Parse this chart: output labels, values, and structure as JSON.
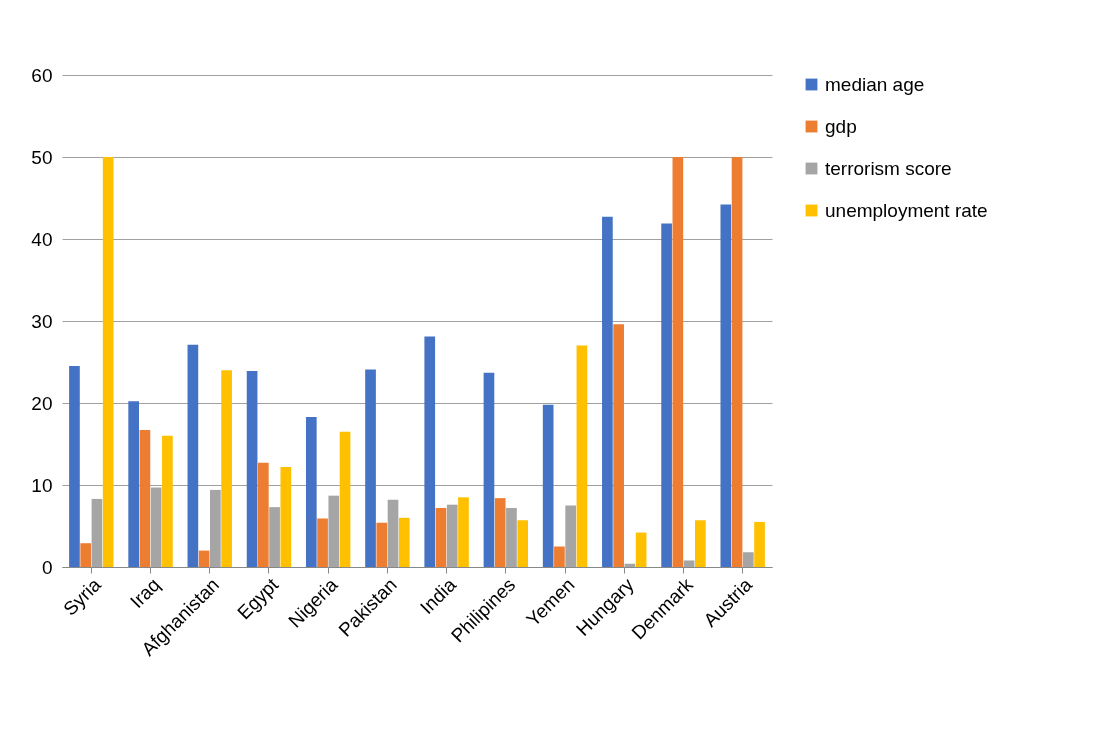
{
  "chart_data": {
    "type": "bar",
    "categories": [
      "Syria",
      "Iraq",
      "Afghanistan",
      "Egypt",
      "Nigeria",
      "Pakistan",
      "India",
      "Philipines",
      "Yemen",
      "Hungary",
      "Denmark",
      "Austria"
    ],
    "series": [
      {
        "name": "median age",
        "color": "#4472c4",
        "values": [
          24.5,
          20.2,
          27.1,
          23.9,
          18.3,
          24.1,
          28.1,
          23.7,
          19.8,
          42.7,
          41.9,
          44.2
        ]
      },
      {
        "name": "gdp",
        "color": "#ed7d31",
        "values": [
          2.9,
          16.7,
          2.0,
          12.7,
          5.9,
          5.4,
          7.2,
          8.4,
          2.5,
          29.6,
          50,
          50
        ]
      },
      {
        "name": "terrorism score",
        "color": "#a5a5a5",
        "values": [
          8.3,
          9.7,
          9.4,
          7.3,
          8.7,
          8.2,
          7.6,
          7.2,
          7.5,
          0.4,
          0.8,
          1.8
        ]
      },
      {
        "name": "unemployment rate",
        "color": "#ffc000",
        "values": [
          50,
          16,
          24,
          12.2,
          16.5,
          6.0,
          8.5,
          5.7,
          27.0,
          4.2,
          5.7,
          5.5
        ]
      }
    ],
    "ylim": [
      0,
      60
    ],
    "yticks": [
      0,
      10,
      20,
      30,
      40,
      50,
      60
    ],
    "grid": "y",
    "legend": "right"
  }
}
